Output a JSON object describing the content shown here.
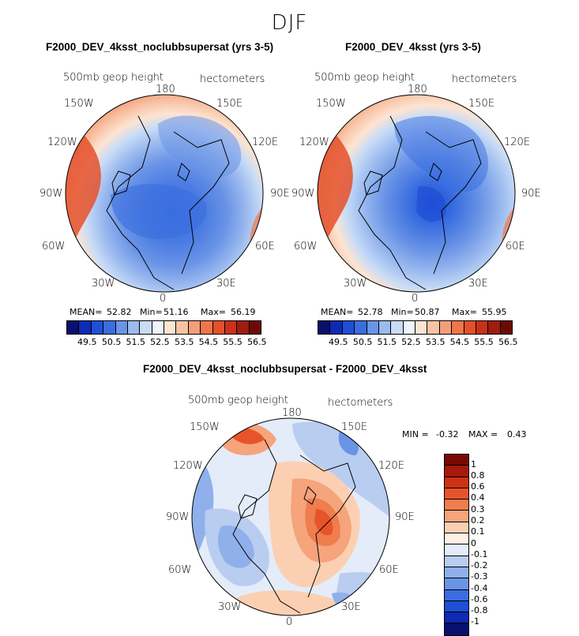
{
  "figure": {
    "season": "DJF"
  },
  "panels": [
    {
      "title": "F2000_DEV_4ksst_noclubbsupersat (yrs 3-5)",
      "field": "500mb geop height",
      "units": "hectometers",
      "lon_labels": [
        "180",
        "150E",
        "120E",
        "90E",
        "60E",
        "30E",
        "0",
        "30W",
        "60W",
        "90W",
        "120W",
        "150W"
      ],
      "stats": {
        "mean_label": "MEAN=",
        "mean": "52.82",
        "min_label": "Min=",
        "min": "51.16",
        "max_label": "Max=",
        "max": "56.19"
      },
      "colorbar_ticks": [
        "49.5",
        "50.5",
        "51.5",
        "52.5",
        "53.5",
        "54.5",
        "55.5",
        "56.5"
      ]
    },
    {
      "title": "F2000_DEV_4ksst (yrs 3-5)",
      "field": "500mb geop height",
      "units": "hectometers",
      "lon_labels": [
        "180",
        "150E",
        "120E",
        "90E",
        "60E",
        "30E",
        "0",
        "30W",
        "60W",
        "90W",
        "120W",
        "150W"
      ],
      "stats": {
        "mean_label": "MEAN=",
        "mean": "52.78",
        "min_label": "Min=",
        "min": "50.87",
        "max_label": "Max=",
        "max": "55.95"
      },
      "colorbar_ticks": [
        "49.5",
        "50.5",
        "51.5",
        "52.5",
        "53.5",
        "54.5",
        "55.5",
        "56.5"
      ]
    },
    {
      "title": "F2000_DEV_4ksst_noclubbsupersat - F2000_DEV_4ksst",
      "field": "500mb geop height",
      "units": "hectometers",
      "lon_labels": [
        "180",
        "150E",
        "120E",
        "90E",
        "60E",
        "30E",
        "0",
        "30W",
        "60W",
        "90W",
        "120W",
        "150W"
      ],
      "stats": {
        "min_label": "MIN =",
        "min": "-0.32",
        "max_label": "MAX =",
        "max": "0.43"
      },
      "colorbar_ticks": [
        "1",
        "0.8",
        "0.6",
        "0.4",
        "0.3",
        "0.2",
        "0.1",
        "0",
        "-0.1",
        "-0.2",
        "-0.3",
        "-0.4",
        "-0.6",
        "-0.8",
        "-1"
      ]
    }
  ],
  "palettes": {
    "height": [
      "#08106e",
      "#0f2ab3",
      "#1f4fd6",
      "#3a6ee0",
      "#6a94e6",
      "#9bbaef",
      "#c8dcf6",
      "#eef4fb",
      "#fde4d2",
      "#f8c3a5",
      "#f49e79",
      "#ef7649",
      "#e4502a",
      "#c9311a",
      "#a01c0f",
      "#6e0a06"
    ],
    "diff": [
      "#7a0805",
      "#a51a0d",
      "#cf3115",
      "#e8542a",
      "#ef7d4e",
      "#f5a47c",
      "#fbd0b2",
      "#fdf0e6",
      "#e4ecf9",
      "#b9cdf1",
      "#8fb0ea",
      "#6a94e6",
      "#3a6ee0",
      "#1f4fd6",
      "#0f2ab3",
      "#08106e"
    ]
  }
}
